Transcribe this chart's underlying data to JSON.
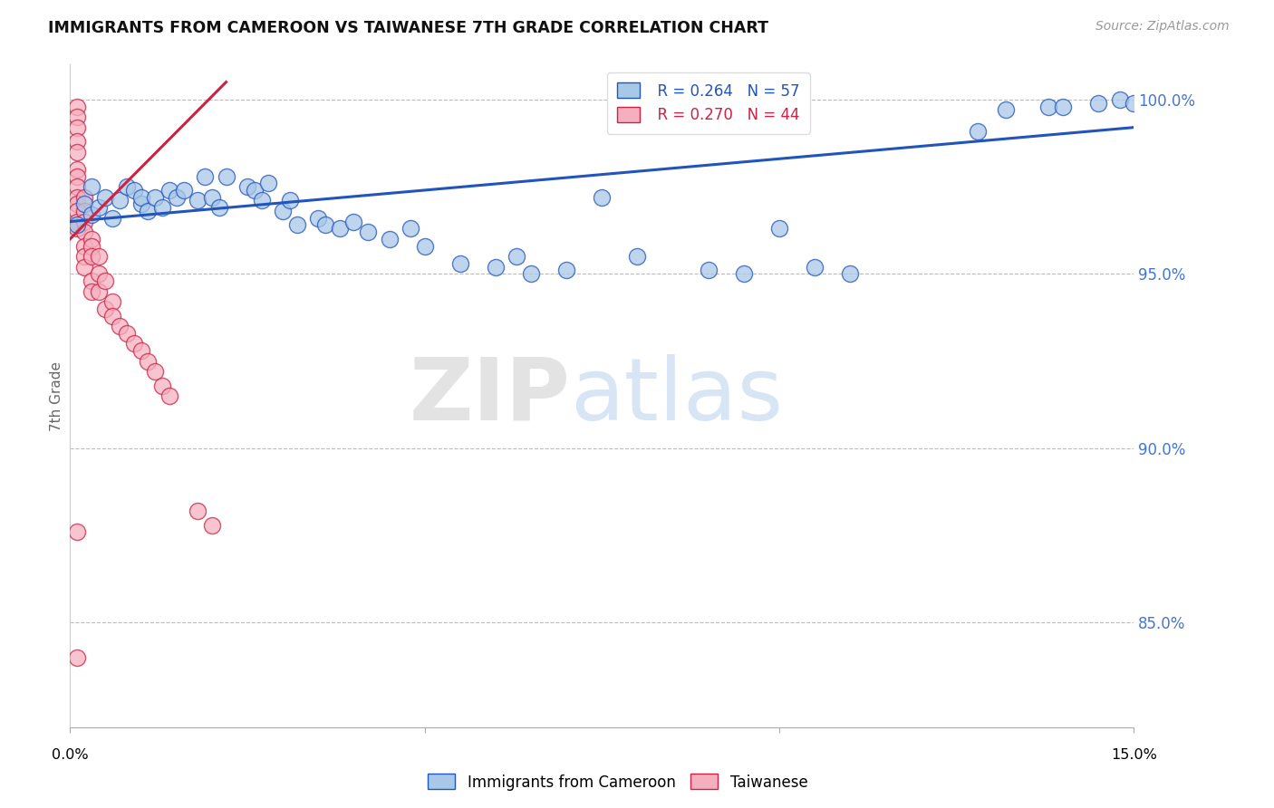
{
  "title": "IMMIGRANTS FROM CAMEROON VS TAIWANESE 7TH GRADE CORRELATION CHART",
  "source": "Source: ZipAtlas.com",
  "ylabel": "7th Grade",
  "xmin": 0.0,
  "xmax": 0.15,
  "ymin": 0.82,
  "ymax": 1.01,
  "yticks": [
    0.85,
    0.9,
    0.95,
    1.0
  ],
  "ytick_labels": [
    "85.0%",
    "90.0%",
    "95.0%",
    "100.0%"
  ],
  "blue_color": "#a8c8e8",
  "pink_color": "#f5b0c0",
  "blue_line_color": "#2255bb",
  "pink_line_color": "#cc2244",
  "grid_color": "#bbbbbb",
  "right_axis_color": "#4477cc",
  "legend_blue_r": "R = 0.264",
  "legend_blue_n": "N = 57",
  "legend_pink_r": "R = 0.270",
  "legend_pink_n": "N = 44",
  "blue_scatter_x": [
    0.001,
    0.002,
    0.003,
    0.003,
    0.004,
    0.005,
    0.006,
    0.007,
    0.008,
    0.009,
    0.01,
    0.01,
    0.011,
    0.012,
    0.013,
    0.014,
    0.015,
    0.016,
    0.018,
    0.019,
    0.02,
    0.021,
    0.022,
    0.025,
    0.026,
    0.027,
    0.028,
    0.03,
    0.031,
    0.032,
    0.035,
    0.036,
    0.038,
    0.04,
    0.042,
    0.045,
    0.048,
    0.05,
    0.055,
    0.06,
    0.063,
    0.065,
    0.07,
    0.075,
    0.08,
    0.09,
    0.095,
    0.1,
    0.105,
    0.11,
    0.128,
    0.132,
    0.138,
    0.14,
    0.145,
    0.148,
    0.15
  ],
  "blue_scatter_y": [
    0.964,
    0.97,
    0.975,
    0.967,
    0.969,
    0.972,
    0.966,
    0.971,
    0.975,
    0.974,
    0.97,
    0.972,
    0.968,
    0.972,
    0.969,
    0.974,
    0.972,
    0.974,
    0.971,
    0.978,
    0.972,
    0.969,
    0.978,
    0.975,
    0.974,
    0.971,
    0.976,
    0.968,
    0.971,
    0.964,
    0.966,
    0.964,
    0.963,
    0.965,
    0.962,
    0.96,
    0.963,
    0.958,
    0.953,
    0.952,
    0.955,
    0.95,
    0.951,
    0.972,
    0.955,
    0.951,
    0.95,
    0.963,
    0.952,
    0.95,
    0.991,
    0.997,
    0.998,
    0.998,
    0.999,
    1.0,
    0.999
  ],
  "pink_scatter_x": [
    0.001,
    0.001,
    0.001,
    0.001,
    0.001,
    0.001,
    0.001,
    0.001,
    0.001,
    0.001,
    0.001,
    0.001,
    0.001,
    0.002,
    0.002,
    0.002,
    0.002,
    0.002,
    0.002,
    0.002,
    0.003,
    0.003,
    0.003,
    0.003,
    0.003,
    0.004,
    0.004,
    0.004,
    0.005,
    0.005,
    0.006,
    0.006,
    0.007,
    0.008,
    0.009,
    0.01,
    0.011,
    0.012,
    0.013,
    0.014,
    0.018,
    0.02,
    0.001,
    0.001
  ],
  "pink_scatter_y": [
    0.998,
    0.995,
    0.992,
    0.988,
    0.985,
    0.98,
    0.978,
    0.975,
    0.972,
    0.97,
    0.968,
    0.965,
    0.963,
    0.972,
    0.968,
    0.965,
    0.962,
    0.958,
    0.955,
    0.952,
    0.96,
    0.958,
    0.955,
    0.948,
    0.945,
    0.955,
    0.95,
    0.945,
    0.948,
    0.94,
    0.942,
    0.938,
    0.935,
    0.933,
    0.93,
    0.928,
    0.925,
    0.922,
    0.918,
    0.915,
    0.882,
    0.878,
    0.876,
    0.84
  ],
  "blue_trendline_x": [
    0.0,
    0.15
  ],
  "blue_trendline_y": [
    0.965,
    0.992
  ],
  "pink_trendline_x": [
    0.0,
    0.022
  ],
  "pink_trendline_y": [
    0.96,
    1.005
  ]
}
